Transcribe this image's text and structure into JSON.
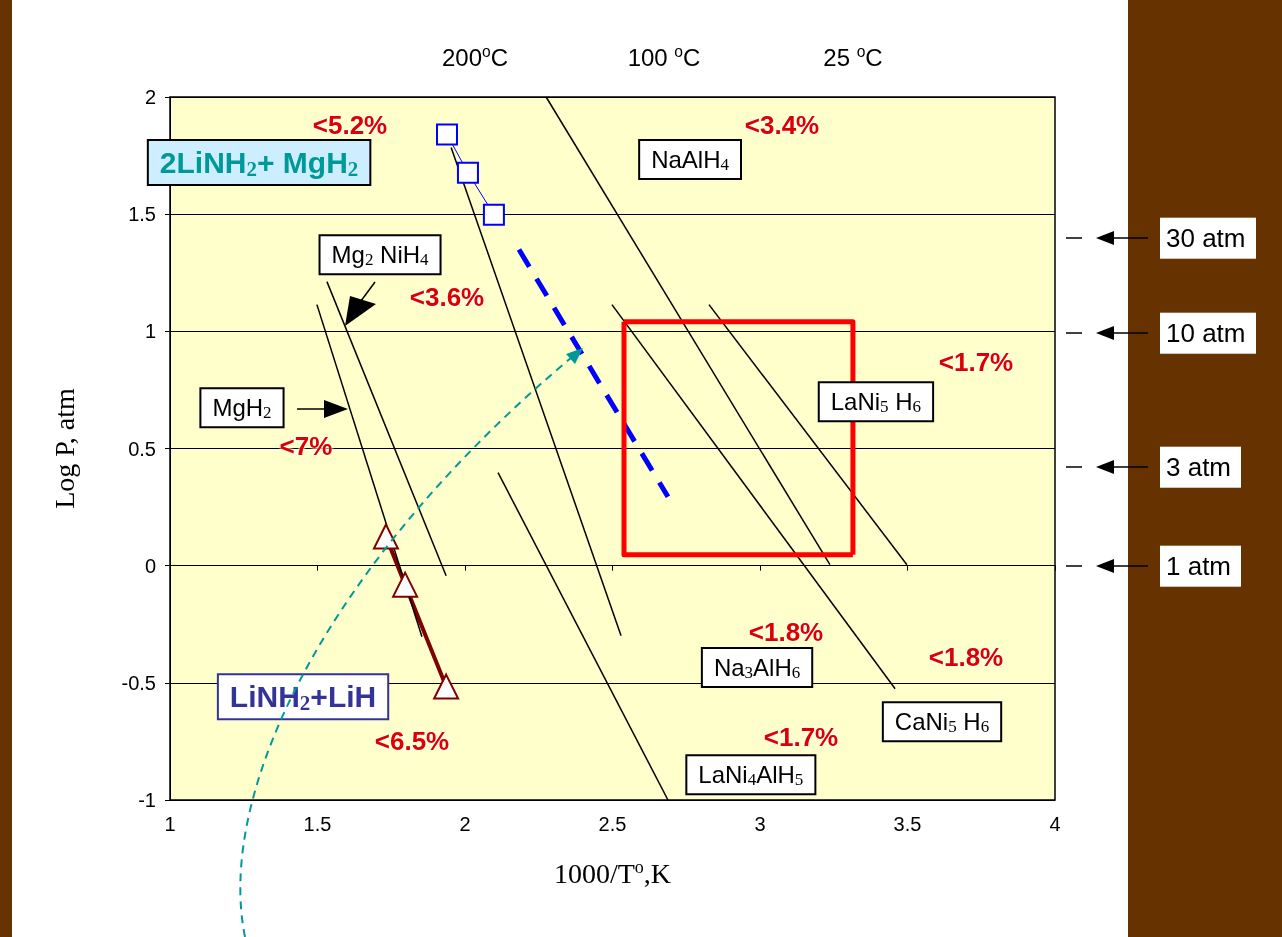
{
  "chart_data": {
    "type": "line",
    "xlabel": "1000/T$^{o}$,K",
    "ylabel": "Log P, atm",
    "xlim": [
      1,
      4
    ],
    "xticks": [
      1,
      1.5,
      2,
      2.5,
      3,
      3.5,
      4
    ],
    "ylim": [
      -1,
      2
    ],
    "yticks": [
      -1,
      -0.5,
      0,
      0.5,
      1,
      1.5,
      2
    ],
    "grid": "y",
    "marker": "none",
    "series": [
      {
        "name": "2LiNH$_{2}$+ MgH$_{2}$",
        "color": "#0000ff",
        "marker": "square",
        "x": [
          1.939,
          2.01,
          2.098
        ],
        "values": [
          1.84,
          1.677,
          1.498
        ]
      },
      {
        "color": "#0000ff",
        "line_style": "dashed",
        "x": [
          2.183,
          2.688
        ],
        "values": [
          1.349,
          0.294
        ]
      },
      {
        "name": "LiNH$_{2}$+LiH",
        "color": "#800000",
        "marker": "triangle",
        "x": [
          1.732,
          1.797,
          1.936
        ],
        "values": [
          0.124,
          -0.081,
          -0.516
        ]
      },
      {
        "name": "MgH$_{2}$",
        "color": "#000000",
        "x": [
          1.498,
          1.854
        ],
        "values": [
          1.114,
          -0.303
        ]
      },
      {
        "name": "Mg$_{2}$ NiH$_{4}$",
        "color": "#000000",
        "x": [
          1.532,
          1.936
        ],
        "values": [
          1.212,
          -0.043
        ]
      },
      {
        "name": "NaAlH$_{4}$",
        "color": "#000000",
        "x": [
          2.275,
          3.237
        ],
        "values": [
          2.0,
          0.004
        ]
      },
      {
        "name": "Na$_{3}$AlH$_{6}$",
        "color": "#000000",
        "x": [
          1.953,
          2.529
        ],
        "values": [
          1.785,
          -0.299
        ]
      },
      {
        "name": "LaNi$_{4}$AlH$_{5}$",
        "color": "#000000",
        "x": [
          2.112,
          2.688
        ],
        "values": [
          0.397,
          -1.0
        ]
      },
      {
        "name": "CaNi$_{5}$ H$_{6}$",
        "color": "#000000",
        "x": [
          2.498,
          3.458
        ],
        "values": [
          1.114,
          -0.525
        ]
      },
      {
        "name": "LaNi$_{5}$ H$_{6}$",
        "color": "#000000",
        "x": [
          2.827,
          3.498
        ],
        "values": [
          1.114,
          0.004
        ]
      },
      {
        "color": "#ff0000",
        "x": [
          2.539,
          3.315,
          3.315
        ],
        "values": [
          1.041,
          1.041,
          0.047
        ]
      },
      {
        "color": "#ff0000",
        "x": [
          3.315,
          2.539,
          2.539
        ],
        "values": [
          0.047,
          0.047,
          1.041
        ]
      }
    ],
    "annotations": [
      "200$^{o}$C",
      "100 $^{o}$C",
      "25 $^{o}$C",
      "<5.2%",
      "<3.4%",
      "<3.6%",
      "<7%",
      "<1.7%",
      "<1.8%",
      "<1.8%",
      "<1.7%",
      "<6.5%",
      "30 atm",
      "10 atm",
      "3 atm",
      "1 atm"
    ]
  }
}
